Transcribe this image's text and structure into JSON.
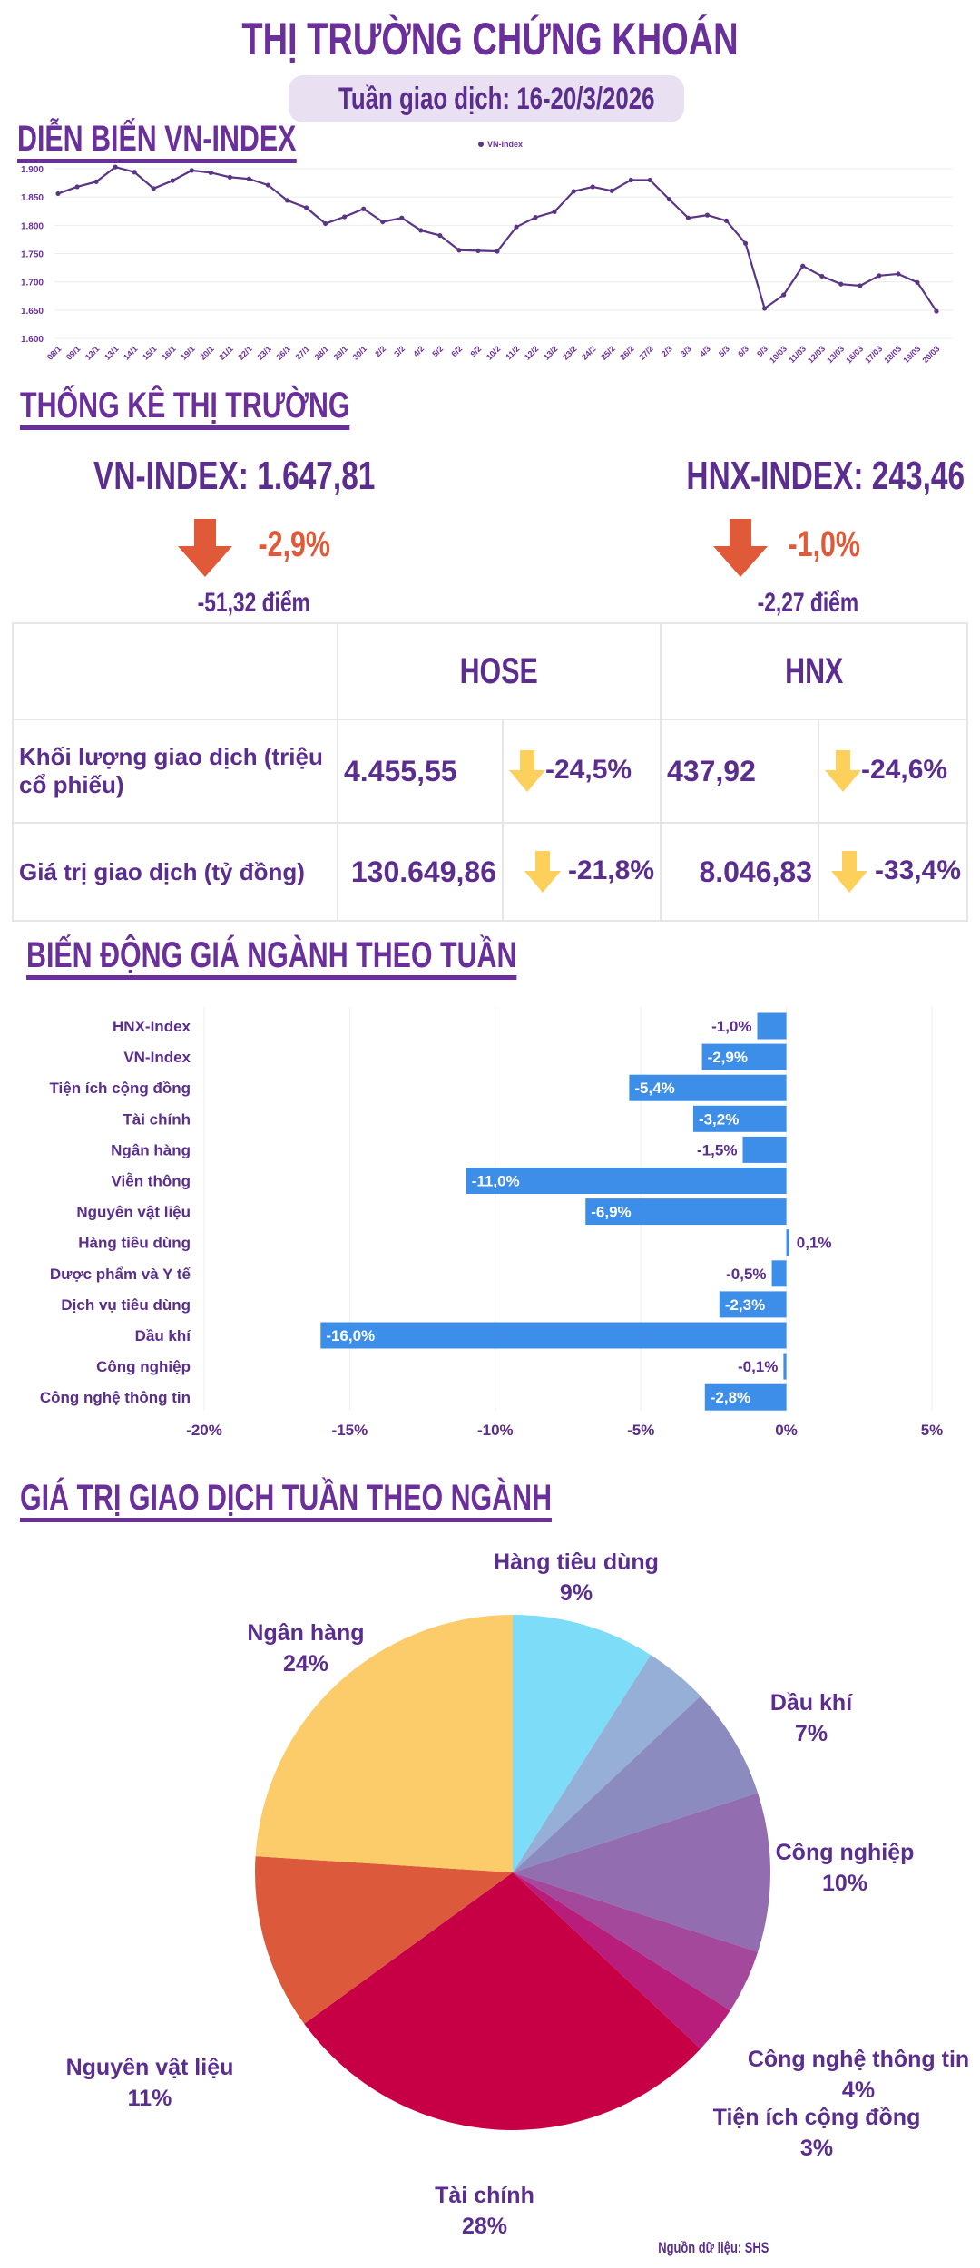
{
  "header": {
    "title": "THỊ TRƯỜNG CHỨNG KHOÁN",
    "subtitle": "Tuần giao dịch: 16-20/3/2026"
  },
  "colors": {
    "purple": "#5b2d8e",
    "down_red": "#e05a3a",
    "down_yellow": "#fcd05a",
    "bar_blue": "#3d8ee8",
    "line": "#5a3585"
  },
  "sections": {
    "vnindex_trend": "DIỄN BIẾN VN-INDEX",
    "market_stats": "THỐNG KÊ THỊ TRƯỜNG",
    "sector_change": "BIẾN ĐỘNG GIÁ NGÀNH THEO TUẦN",
    "sector_value": "GIÁ TRỊ GIAO DỊCH TUẦN THEO NGÀNH"
  },
  "stats": {
    "vn": {
      "label": "VN-INDEX: 1.647,81",
      "pct": "-2,9%",
      "points": "-51,32 điểm",
      "arrow": "arrow-down-icon"
    },
    "hnx": {
      "label": "HNX-INDEX: 243,46",
      "pct": "-1,0%",
      "points": "-2,27 điểm",
      "arrow": "arrow-down-icon"
    }
  },
  "table": {
    "headers": [
      "",
      "HOSE",
      "HNX"
    ],
    "rows": [
      {
        "label": "Khối lượng giao dịch (triệu cổ phiếu)",
        "hose": "4.455,55",
        "hose_chg": "-24,5%",
        "hnx": "437,92",
        "hnx_chg": "-24,6%"
      },
      {
        "label": "Giá trị giao dịch (tỷ đồng)",
        "hose": "130.649,86",
        "hose_chg": "-21,8%",
        "hnx": "8.046,83",
        "hnx_chg": "-33,4%"
      }
    ]
  },
  "source": "Nguồn dữ liệu: SHS",
  "chart_data": [
    {
      "type": "line",
      "legend": "VN-Index",
      "legend_position": "top-center",
      "grid": true,
      "ylim": [
        1600,
        1900
      ],
      "yticks": [
        "1.600",
        "1.650",
        "1.700",
        "1.750",
        "1.800",
        "1.850",
        "1.900"
      ],
      "ytick_values": [
        1600,
        1650,
        1700,
        1750,
        1800,
        1850,
        1900
      ],
      "x": [
        "08/1",
        "09/1",
        "12/1",
        "13/1",
        "14/1",
        "15/1",
        "16/1",
        "19/1",
        "20/1",
        "21/1",
        "22/1",
        "23/1",
        "26/1",
        "27/1",
        "28/1",
        "29/1",
        "30/1",
        "2/2",
        "3/2",
        "4/2",
        "5/2",
        "6/2",
        "9/2",
        "10/2",
        "11/2",
        "12/2",
        "13/2",
        "23/2",
        "24/2",
        "25/2",
        "26/2",
        "27/2",
        "2/3",
        "3/3",
        "4/3",
        "5/3",
        "6/3",
        "9/3",
        "10/03",
        "11/03",
        "12/03",
        "13/03",
        "16/03",
        "17/03",
        "18/03",
        "19/03",
        "20/03"
      ],
      "series": [
        {
          "name": "VN-Index",
          "values": [
            1856,
            1868,
            1877,
            1903,
            1894,
            1865,
            1879,
            1897,
            1893,
            1885,
            1882,
            1871,
            1844,
            1831,
            1803,
            1815,
            1829,
            1806,
            1813,
            1791,
            1782,
            1756,
            1755,
            1754,
            1797,
            1814,
            1824,
            1860,
            1868,
            1861,
            1880,
            1880,
            1846,
            1813,
            1818,
            1808,
            1768,
            1653,
            1677,
            1728,
            1710,
            1696,
            1693,
            1711,
            1714,
            1699,
            1648
          ]
        }
      ]
    },
    {
      "type": "bar",
      "orientation": "horizontal",
      "grid": true,
      "xlim": [
        -20,
        5
      ],
      "xticks": [
        "-20%",
        "-15%",
        "-10%",
        "-5%",
        "0%",
        "5%"
      ],
      "xtick_values": [
        -20,
        -15,
        -10,
        -5,
        0,
        5
      ],
      "categories": [
        "HNX-Index",
        "VN-Index",
        "Tiện ích cộng đồng",
        "Tài chính",
        "Ngân hàng",
        "Viễn thông",
        "Nguyên vật liệu",
        "Hàng tiêu dùng",
        "Dược phẩm và Y tế",
        "Dịch vụ tiêu dùng",
        "Dầu khí",
        "Công nghiệp",
        "Công nghệ thông tin"
      ],
      "values": [
        -1.0,
        -2.9,
        -5.4,
        -3.2,
        -1.5,
        -11.0,
        -6.9,
        0.1,
        -0.5,
        -2.3,
        -16.0,
        -0.1,
        -2.8
      ],
      "labels": [
        "-1,0%",
        "-2,9%",
        "-5,4%",
        "-3,2%",
        "-1,5%",
        "-11,0%",
        "-6,9%",
        "0,1%",
        "-0,5%",
        "-2,3%",
        "-16,0%",
        "-0,1%",
        "-2,8%"
      ]
    },
    {
      "type": "pie",
      "slices": [
        {
          "name": "Hàng tiêu dùng",
          "value": 9,
          "label": "9%",
          "color": "#7ddcf8"
        },
        {
          "name": "",
          "value": 4,
          "label": "",
          "color": "#96afd6"
        },
        {
          "name": "Dầu khí",
          "value": 7,
          "label": "7%",
          "color": "#8b8bc0"
        },
        {
          "name": "Công nghiệp",
          "value": 10,
          "label": "10%",
          "color": "#926db0"
        },
        {
          "name": "Công nghệ thông tin",
          "value": 4,
          "label": "4%",
          "color": "#a4489c"
        },
        {
          "name": "Tiện ích cộng đồng",
          "value": 3,
          "label": "3%",
          "color": "#b81d7b"
        },
        {
          "name": "Tài chính",
          "value": 28,
          "label": "28%",
          "color": "#c70046"
        },
        {
          "name": "Nguyên vật liệu",
          "value": 11,
          "label": "11%",
          "color": "#dc5a3b"
        },
        {
          "name": "Ngân hàng",
          "value": 24,
          "label": "24%",
          "color": "#fccb6a"
        }
      ]
    }
  ]
}
